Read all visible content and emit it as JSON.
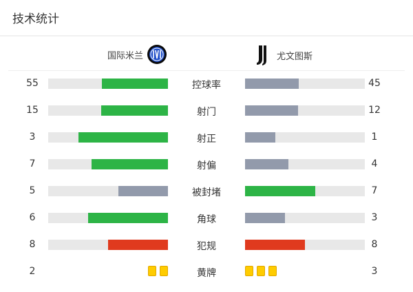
{
  "header": {
    "title": "技术统计"
  },
  "teams": {
    "home": {
      "name": "国际米兰",
      "logo": "inter-milan-logo"
    },
    "away": {
      "name": "尤文图斯",
      "logo": "juventus-logo"
    }
  },
  "colors": {
    "green": "#2db446",
    "grey": "#929aab",
    "red": "#e03a1e",
    "track": "#e8e8e8",
    "yellow": "#ffcc00"
  },
  "stats": [
    {
      "label": "控球率",
      "home": 55,
      "away": 45,
      "home_color": "#2db446",
      "away_color": "#929aab"
    },
    {
      "label": "射门",
      "home": 15,
      "away": 12,
      "home_color": "#2db446",
      "away_color": "#929aab"
    },
    {
      "label": "射正",
      "home": 3,
      "away": 1,
      "home_color": "#2db446",
      "away_color": "#929aab"
    },
    {
      "label": "射偏",
      "home": 7,
      "away": 4,
      "home_color": "#2db446",
      "away_color": "#929aab"
    },
    {
      "label": "被封堵",
      "home": 5,
      "away": 7,
      "home_color": "#929aab",
      "away_color": "#2db446"
    },
    {
      "label": "角球",
      "home": 6,
      "away": 3,
      "home_color": "#2db446",
      "away_color": "#929aab"
    },
    {
      "label": "犯规",
      "home": 8,
      "away": 8,
      "home_color": "#e03a1e",
      "away_color": "#e03a1e"
    }
  ],
  "yellow_cards": {
    "label": "黄牌",
    "home": 2,
    "away": 3
  }
}
